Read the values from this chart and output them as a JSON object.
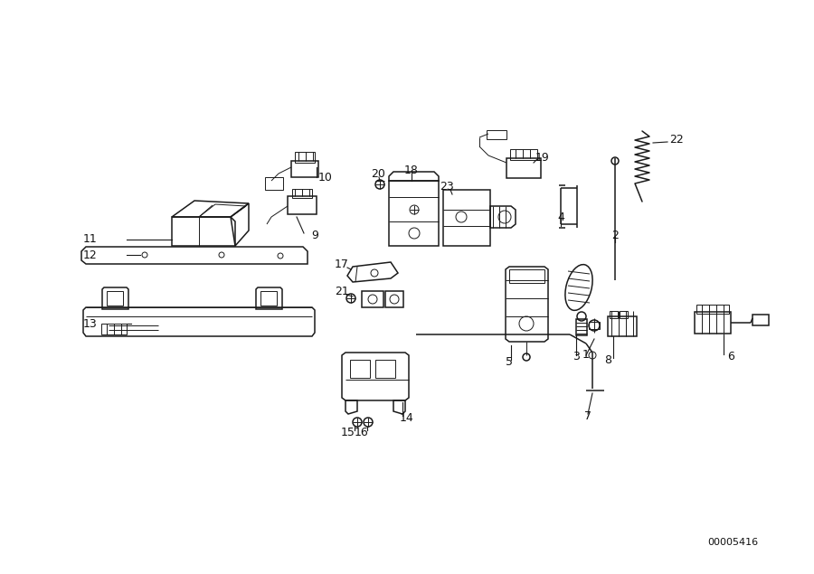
{
  "bg_color": "#ffffff",
  "line_color": "#1a1a1a",
  "label_color": "#111111",
  "diagram_id": "00005416",
  "fig_width": 9.0,
  "fig_height": 6.35,
  "dpi": 100
}
